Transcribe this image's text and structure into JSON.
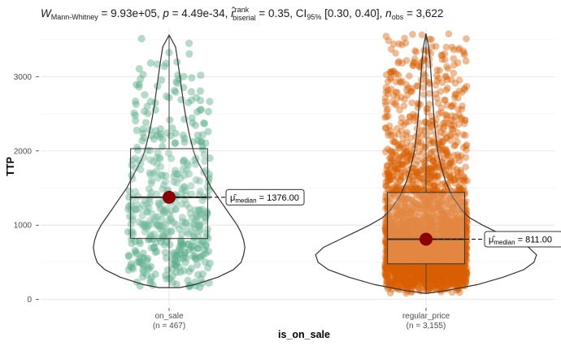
{
  "chart_data": {
    "type": "violin-box-jitter",
    "title": {
      "W_sub": "Mann-Whitney",
      "W_val": "9.93e+05",
      "p_val": "4.49e-34",
      "r_sup": "rank",
      "r_sub": "biserial",
      "r_val": "0.35",
      "ci_sub": "95%",
      "ci_val": "[0.30, 0.40]",
      "n_sub": "obs",
      "n_val": "3,622"
    },
    "xlabel": "is_on_sale",
    "ylabel": "TTP",
    "ylim": [
      -80,
      3660
    ],
    "yticks": [
      0,
      1000,
      2000,
      3000
    ],
    "grid": true,
    "groups": [
      {
        "name": "on_sale",
        "n_label": "(n = 467)",
        "n": 467,
        "color": "#5AAE8A",
        "box": {
          "q1": 820,
          "median": 1376,
          "q3": 2030,
          "whisker_low": 160,
          "whisker_high": 3560
        },
        "violin": {
          "y": [
            160,
            200,
            300,
            400,
            500,
            600,
            700,
            800,
            900,
            1000,
            1100,
            1200,
            1300,
            1400,
            1500,
            1600,
            1700,
            1800,
            1900,
            2000,
            2200,
            2400,
            2600,
            2800,
            3000,
            3200,
            3400,
            3560
          ],
          "half_width": [
            0.04,
            0.1,
            0.19,
            0.25,
            0.28,
            0.29,
            0.295,
            0.29,
            0.28,
            0.265,
            0.245,
            0.225,
            0.205,
            0.185,
            0.165,
            0.15,
            0.135,
            0.12,
            0.105,
            0.095,
            0.08,
            0.068,
            0.058,
            0.05,
            0.042,
            0.034,
            0.025,
            0.0
          ]
        },
        "median_label": "1376.00",
        "jitter_count": 467
      },
      {
        "name": "regular_price",
        "n_label": "(n = 3,155)",
        "n": 3155,
        "color": "#D95F02",
        "box": {
          "q1": 480,
          "median": 811,
          "q3": 1440,
          "whisker_low": 80,
          "whisker_high": 3580
        },
        "violin": {
          "y": [
            80,
            120,
            200,
            300,
            400,
            500,
            600,
            700,
            800,
            900,
            1000,
            1100,
            1200,
            1400,
            1600,
            1800,
            2000,
            2200,
            2400,
            2600,
            2800,
            3000,
            3200,
            3400,
            3580
          ],
          "half_width": [
            0.0,
            0.08,
            0.2,
            0.3,
            0.38,
            0.42,
            0.43,
            0.4,
            0.34,
            0.28,
            0.22,
            0.17,
            0.14,
            0.1,
            0.075,
            0.058,
            0.045,
            0.038,
            0.032,
            0.028,
            0.024,
            0.02,
            0.016,
            0.01,
            0.0
          ]
        },
        "median_label": "811.00",
        "jitter_count": 3155
      }
    ],
    "median_symbol": "μ̂",
    "median_sub": "median"
  }
}
